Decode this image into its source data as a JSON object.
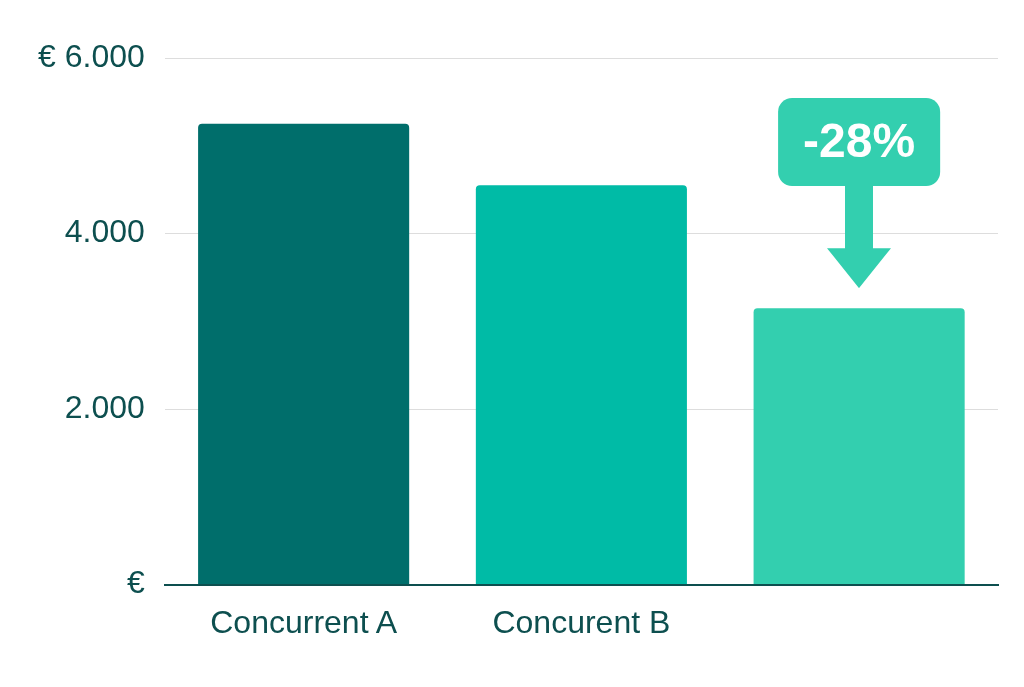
{
  "chart_data": {
    "type": "bar",
    "categories": [
      "Concurrent A",
      "Concurent B",
      null
    ],
    "values": [
      5250,
      4550,
      3150
    ],
    "colors": [
      "#006e6b",
      "#00bba6",
      "#33cfaf"
    ],
    "ylim": [
      0,
      6000
    ],
    "yticks": [
      {
        "value": 0,
        "label": "€"
      },
      {
        "value": 2000,
        "label": "2.000"
      },
      {
        "value": 4000,
        "label": "4.000"
      },
      {
        "value": 6000,
        "label": "€ 6.000"
      }
    ],
    "grid": "y",
    "legend": false,
    "annotations": [
      "-28%"
    ]
  }
}
